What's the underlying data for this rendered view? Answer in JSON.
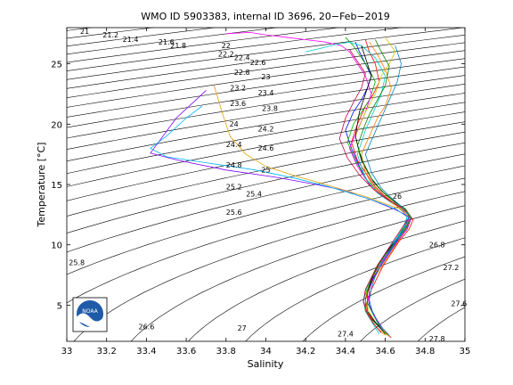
{
  "chart_data": {
    "type": "line",
    "title": "WMO ID 5903383, internal ID 3696, 20−Feb−2019",
    "xlabel": "Salinity",
    "ylabel": "Temperature [°C]",
    "xlim": [
      33,
      35
    ],
    "ylim": [
      2,
      28
    ],
    "xticks": [
      "33",
      "33.2",
      "33.4",
      "33.6",
      "33.8",
      "34",
      "34.2",
      "34.4",
      "34.6",
      "34.8",
      "35"
    ],
    "yticks": [
      "5",
      "10",
      "15",
      "20",
      "25"
    ],
    "grid": false,
    "legend": "none",
    "logo_text": "NOAA",
    "density_contours": {
      "label_points": [
        {
          "label": "21",
          "x": 33.09,
          "y": 27.5
        },
        {
          "label": "21.2",
          "x": 33.22,
          "y": 27.2
        },
        {
          "label": "21.4",
          "x": 33.32,
          "y": 26.8
        },
        {
          "label": "21.6",
          "x": 33.5,
          "y": 26.6
        },
        {
          "label": "21.8",
          "x": 33.56,
          "y": 26.3
        },
        {
          "label": "22",
          "x": 33.8,
          "y": 26.3
        },
        {
          "label": "22.2",
          "x": 33.8,
          "y": 25.6
        },
        {
          "label": "22.4",
          "x": 33.88,
          "y": 25.3
        },
        {
          "label": "22.6",
          "x": 33.96,
          "y": 24.9
        },
        {
          "label": "22.8",
          "x": 33.88,
          "y": 24.1
        },
        {
          "label": "23",
          "x": 34.0,
          "y": 23.7
        },
        {
          "label": "23.2",
          "x": 33.86,
          "y": 22.8
        },
        {
          "label": "23.4",
          "x": 34.0,
          "y": 22.4
        },
        {
          "label": "23.6",
          "x": 33.86,
          "y": 21.5
        },
        {
          "label": "23.8",
          "x": 34.02,
          "y": 21.1
        },
        {
          "label": "24",
          "x": 33.84,
          "y": 19.8
        },
        {
          "label": "24.2",
          "x": 34.0,
          "y": 19.4
        },
        {
          "label": "24.4",
          "x": 33.84,
          "y": 18.1
        },
        {
          "label": "24.6",
          "x": 34.0,
          "y": 17.8
        },
        {
          "label": "24.8",
          "x": 33.84,
          "y": 16.4
        },
        {
          "label": "25",
          "x": 34.0,
          "y": 16.0
        },
        {
          "label": "25.2",
          "x": 33.84,
          "y": 14.6
        },
        {
          "label": "25.4",
          "x": 33.94,
          "y": 14.0
        },
        {
          "label": "25.6",
          "x": 33.84,
          "y": 12.5
        },
        {
          "label": "25.8",
          "x": 33.05,
          "y": 8.3
        },
        {
          "label": "26",
          "x": 34.66,
          "y": 13.8
        },
        {
          "label": "26.8",
          "x": 34.86,
          "y": 9.8
        },
        {
          "label": "27",
          "x": 33.88,
          "y": 2.9
        },
        {
          "label": "27.2",
          "x": 34.93,
          "y": 7.9
        },
        {
          "label": "27.4",
          "x": 34.4,
          "y": 2.4
        },
        {
          "label": "27.6",
          "x": 34.97,
          "y": 4.9
        },
        {
          "label": "27.8",
          "x": 34.86,
          "y": 2.0
        },
        {
          "label": "26.6",
          "x": 33.4,
          "y": 3.0
        }
      ]
    },
    "series": [
      {
        "color": "#0000ff",
        "x": [
          34.45,
          34.47,
          34.5,
          34.53,
          34.51,
          34.48,
          34.44,
          34.4,
          34.43,
          34.47,
          34.52,
          34.58,
          34.62,
          34.66,
          34.7,
          34.73,
          34.71,
          34.66,
          34.62,
          34.58,
          34.55,
          34.52,
          34.5,
          34.5,
          34.52,
          34.55,
          34.58,
          34.62
        ],
        "y": [
          26.8,
          26.0,
          25.0,
          24.0,
          23.0,
          22.0,
          21.0,
          19.5,
          18.0,
          16.5,
          15.0,
          14.2,
          13.6,
          13.2,
          12.8,
          12.2,
          11.5,
          10.5,
          9.5,
          8.5,
          7.5,
          6.5,
          5.5,
          4.5,
          4.0,
          3.5,
          3.0,
          2.4
        ]
      },
      {
        "color": "#ff0000",
        "x": [
          34.5,
          34.52,
          34.55,
          34.57,
          34.54,
          34.5,
          34.46,
          34.43,
          34.46,
          34.5,
          34.55,
          34.6,
          34.64,
          34.68,
          34.71,
          34.74,
          34.72,
          34.67,
          34.63,
          34.59,
          34.56,
          34.53,
          34.51,
          34.51,
          34.53,
          34.56,
          34.59,
          34.63
        ],
        "y": [
          27.0,
          26.0,
          25.0,
          23.5,
          22.5,
          21.5,
          20.0,
          18.5,
          17.0,
          16.0,
          14.8,
          14.0,
          13.5,
          13.0,
          12.6,
          12.1,
          11.3,
          10.3,
          9.3,
          8.3,
          7.3,
          6.3,
          5.3,
          4.4,
          3.9,
          3.4,
          2.9,
          2.3
        ]
      },
      {
        "color": "#00b000",
        "x": [
          34.4,
          34.44,
          34.48,
          34.52,
          34.55,
          34.52,
          34.48,
          34.44,
          34.41,
          34.45,
          34.5,
          34.56,
          34.61,
          34.66,
          34.7,
          34.72,
          34.69,
          34.65,
          34.61,
          34.57,
          34.54,
          34.51,
          34.49,
          34.5,
          34.52,
          34.55,
          34.58,
          34.61
        ],
        "y": [
          27.2,
          26.5,
          25.5,
          24.5,
          23.5,
          22.0,
          21.0,
          20.0,
          18.5,
          17.0,
          15.5,
          14.5,
          13.8,
          13.3,
          12.9,
          12.3,
          11.4,
          10.4,
          9.4,
          8.4,
          7.4,
          6.4,
          5.4,
          4.5,
          4.0,
          3.5,
          3.0,
          2.5
        ]
      },
      {
        "color": "#ff00ff",
        "x": [
          33.8,
          33.92,
          34.0,
          34.1,
          34.2,
          34.3,
          34.38,
          34.42,
          34.46,
          34.5,
          34.53,
          34.5,
          34.46,
          34.42,
          34.46,
          34.52,
          34.58,
          34.63,
          34.68,
          34.72,
          34.7,
          34.65,
          34.6,
          34.56,
          34.53,
          34.51,
          34.52,
          34.55,
          34.59
        ],
        "y": [
          27.5,
          27.6,
          27.4,
          27.2,
          27.0,
          26.8,
          26.5,
          26.0,
          25.0,
          24.0,
          22.5,
          21.0,
          19.5,
          18.0,
          16.5,
          15.0,
          14.2,
          13.5,
          13.0,
          12.2,
          11.2,
          10.0,
          9.0,
          8.0,
          7.0,
          6.0,
          5.0,
          4.0,
          3.0
        ]
      },
      {
        "color": "#00c8c8",
        "x": [
          34.2,
          34.28,
          34.35,
          34.42,
          34.48,
          34.55,
          34.6,
          34.58,
          34.54,
          34.5,
          34.46,
          34.5,
          34.56,
          34.62,
          34.67,
          34.71,
          34.69,
          34.64,
          34.6,
          34.56,
          34.53,
          34.5,
          34.49,
          34.51,
          34.54,
          34.57
        ],
        "y": [
          26.0,
          26.3,
          26.6,
          26.8,
          26.5,
          25.5,
          24.0,
          22.5,
          21.0,
          19.5,
          17.5,
          15.5,
          14.3,
          13.6,
          13.1,
          12.4,
          11.3,
          10.2,
          9.2,
          8.2,
          7.2,
          6.2,
          5.2,
          4.2,
          3.4,
          2.6
        ]
      },
      {
        "color": "#c8c800",
        "x": [
          34.6,
          34.65,
          34.62,
          34.58,
          34.55,
          34.5,
          34.45,
          34.47,
          34.51,
          34.56,
          34.61,
          34.66,
          34.7,
          34.73,
          34.7,
          34.66,
          34.62,
          34.58,
          34.54,
          34.51,
          34.5,
          34.52,
          34.55,
          34.58,
          34.62
        ],
        "y": [
          27.2,
          26.0,
          25.0,
          24.0,
          22.5,
          21.0,
          19.0,
          17.5,
          16.0,
          14.8,
          14.0,
          13.4,
          13.0,
          12.2,
          11.4,
          10.4,
          9.4,
          8.4,
          7.4,
          6.4,
          5.4,
          4.4,
          3.6,
          3.0,
          2.4
        ]
      },
      {
        "color": "#000000",
        "x": [
          34.48,
          34.5,
          34.53,
          34.5,
          34.47,
          34.45,
          34.48,
          34.53,
          34.58,
          34.63,
          34.68,
          34.72,
          34.7,
          34.66,
          34.61,
          34.57,
          34.54,
          34.52,
          34.5,
          34.51,
          34.54,
          34.57,
          34.6
        ],
        "y": [
          26.5,
          25.5,
          24.0,
          22.5,
          21.0,
          19.0,
          17.0,
          15.5,
          14.5,
          13.8,
          13.2,
          12.4,
          11.5,
          10.5,
          9.5,
          8.5,
          7.5,
          6.5,
          5.5,
          4.5,
          3.8,
          3.2,
          2.6
        ]
      },
      {
        "color": "#ff8000",
        "x": [
          34.52,
          34.56,
          34.6,
          34.63,
          34.6,
          34.56,
          34.52,
          34.48,
          34.5,
          34.54,
          34.59,
          34.64,
          34.69,
          34.73,
          34.71,
          34.67,
          34.63,
          34.59,
          34.55,
          34.52,
          34.5,
          34.51,
          34.53,
          34.56,
          34.6
        ],
        "y": [
          26.8,
          25.8,
          24.5,
          23.0,
          21.5,
          20.5,
          19.0,
          17.5,
          16.0,
          14.8,
          14.0,
          13.4,
          12.9,
          12.3,
          11.4,
          10.4,
          9.4,
          8.4,
          7.4,
          6.4,
          5.4,
          4.4,
          3.7,
          3.1,
          2.5
        ]
      },
      {
        "color": "#8000ff",
        "x": [
          33.7,
          33.55,
          33.42,
          33.56,
          33.8,
          34.05,
          34.25,
          34.4,
          34.46,
          34.52,
          34.58,
          34.64,
          34.69,
          34.73,
          34.71,
          34.66,
          34.62,
          34.58,
          34.54,
          34.52,
          34.52,
          34.55,
          34.58
        ],
        "y": [
          22.8,
          20.5,
          17.6,
          17.0,
          16.2,
          15.6,
          15.0,
          14.5,
          14.1,
          13.8,
          13.4,
          13.0,
          12.6,
          12.2,
          11.3,
          10.3,
          9.3,
          8.3,
          7.3,
          6.3,
          5.0,
          4.0,
          3.0
        ]
      },
      {
        "color": "#00b4ff",
        "x": [
          33.68,
          33.6,
          33.5,
          33.42,
          33.5,
          33.7,
          33.95,
          34.15,
          34.32,
          34.44,
          34.52,
          34.6,
          34.66,
          34.71,
          34.69,
          34.64
        ],
        "y": [
          21.5,
          20.5,
          19.0,
          18.0,
          17.3,
          16.8,
          16.2,
          15.5,
          14.8,
          14.2,
          13.8,
          13.3,
          12.9,
          12.3,
          11.2,
          10.1
        ]
      },
      {
        "color": "#e0a000",
        "x": [
          33.74,
          33.78,
          33.82,
          33.9,
          34.0,
          34.15,
          34.3,
          34.4,
          34.5,
          34.6,
          34.67,
          34.72
        ],
        "y": [
          23.2,
          21.0,
          19.0,
          17.5,
          16.5,
          15.7,
          15.0,
          14.5,
          14.0,
          13.4,
          13.0,
          12.3
        ]
      },
      {
        "color": "#008000",
        "x": [
          34.55,
          34.58,
          34.62,
          34.6,
          34.56,
          34.52,
          34.49,
          34.46,
          34.49,
          34.54,
          34.6,
          34.65,
          34.7,
          34.73,
          34.7,
          34.65,
          34.6,
          34.56,
          34.53,
          34.51,
          34.51,
          34.54,
          34.57,
          34.6
        ],
        "y": [
          27.0,
          26.0,
          24.8,
          23.2,
          22.0,
          20.8,
          19.6,
          18.2,
          16.8,
          15.2,
          14.2,
          13.5,
          13.0,
          12.3,
          11.3,
          10.2,
          9.2,
          8.2,
          7.2,
          6.2,
          5.2,
          4.2,
          3.3,
          2.6
        ]
      },
      {
        "color": "#c00040",
        "x": [
          34.42,
          34.46,
          34.5,
          34.48,
          34.44,
          34.4,
          34.37,
          34.41,
          34.47,
          34.54,
          34.6,
          34.66,
          34.7,
          34.72,
          34.68,
          34.64,
          34.6,
          34.56,
          34.53,
          34.5,
          34.49,
          34.51,
          34.54,
          34.58
        ],
        "y": [
          26.2,
          25.2,
          24.2,
          23.0,
          21.8,
          20.5,
          18.8,
          17.2,
          15.8,
          14.6,
          13.9,
          13.3,
          12.9,
          12.3,
          11.3,
          10.3,
          9.3,
          8.3,
          7.3,
          6.3,
          5.3,
          4.3,
          3.5,
          2.7
        ]
      },
      {
        "color": "#0080c0",
        "x": [
          34.65,
          34.68,
          34.66,
          34.62,
          34.58,
          34.54,
          34.5,
          34.53,
          34.58,
          34.63,
          34.68,
          34.72,
          34.7,
          34.66,
          34.62,
          34.58,
          34.55,
          34.53,
          34.52,
          34.54,
          34.58,
          34.62
        ],
        "y": [
          26.5,
          25.0,
          23.5,
          22.0,
          20.5,
          19.0,
          17.5,
          16.0,
          14.7,
          13.9,
          13.2,
          12.4,
          11.5,
          10.4,
          9.4,
          8.4,
          7.4,
          6.4,
          5.4,
          4.2,
          3.2,
          2.5
        ]
      }
    ]
  }
}
